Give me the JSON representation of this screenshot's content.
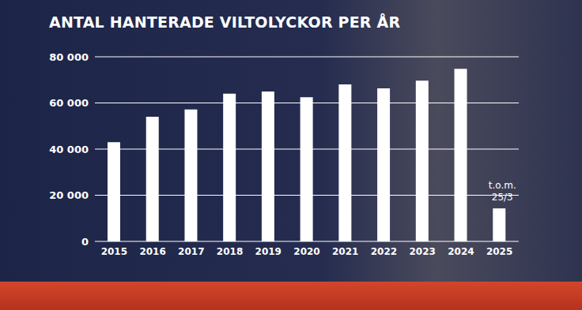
{
  "chart_data": {
    "type": "bar",
    "title": "ANTAL HANTERADE VILTOLYCKOR PER ÅR",
    "categories": [
      "2015",
      "2016",
      "2017",
      "2018",
      "2019",
      "2020",
      "2021",
      "2022",
      "2023",
      "2024",
      "2025"
    ],
    "values": [
      43000,
      54000,
      57200,
      64000,
      65000,
      62500,
      68000,
      66300,
      69700,
      74800,
      14300
    ],
    "color": "#ffffff",
    "ylim": [
      0,
      80000
    ],
    "yticks": [
      0,
      {
        "value": 20000,
        "label": "20 000"
      },
      {
        "value": 40000,
        "label": "40 000"
      },
      {
        "value": 60000,
        "label": "60 000"
      },
      {
        "value": 80000,
        "label": "80 000"
      }
    ],
    "grid": true,
    "annotations": [
      {
        "text": "t.o.m. 25/3",
        "category": "2025"
      }
    ]
  }
}
